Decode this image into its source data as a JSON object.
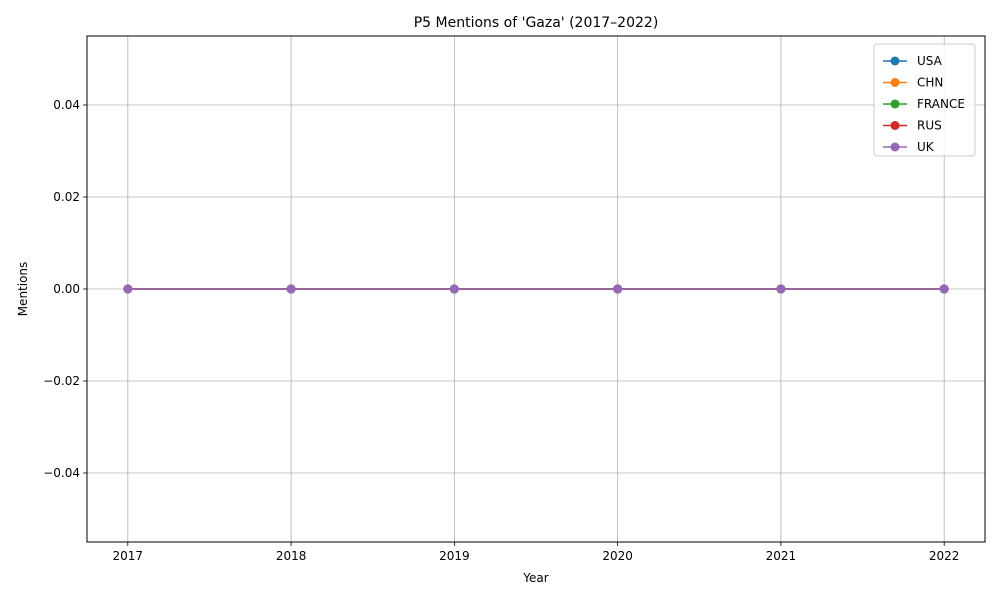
{
  "chart_data": {
    "type": "line",
    "title": "P5 Mentions of 'Gaza' (2017–2022)",
    "xlabel": "Year",
    "ylabel": "Mentions",
    "x": [
      2017,
      2018,
      2019,
      2020,
      2021,
      2022
    ],
    "xlim": [
      2016.75,
      2022.25
    ],
    "ylim": [
      -0.055,
      0.055
    ],
    "yticks": [
      -0.04,
      -0.02,
      0.0,
      0.02,
      0.04
    ],
    "ytick_labels": [
      "−0.04",
      "−0.02",
      "0.00",
      "0.02",
      "0.04"
    ],
    "grid": true,
    "legend_position": "top-right",
    "series": [
      {
        "name": "USA",
        "color": "#1f77b4",
        "values": [
          0,
          0,
          0,
          0,
          0,
          0
        ]
      },
      {
        "name": "CHN",
        "color": "#ff7f0e",
        "values": [
          0,
          0,
          0,
          0,
          0,
          0
        ]
      },
      {
        "name": "FRANCE",
        "color": "#2ca02c",
        "values": [
          0,
          0,
          0,
          0,
          0,
          0
        ]
      },
      {
        "name": "RUS",
        "color": "#d62728",
        "values": [
          0,
          0,
          0,
          0,
          0,
          0
        ]
      },
      {
        "name": "UK",
        "color": "#9467bd",
        "values": [
          0,
          0,
          0,
          0,
          0,
          0
        ]
      }
    ]
  }
}
